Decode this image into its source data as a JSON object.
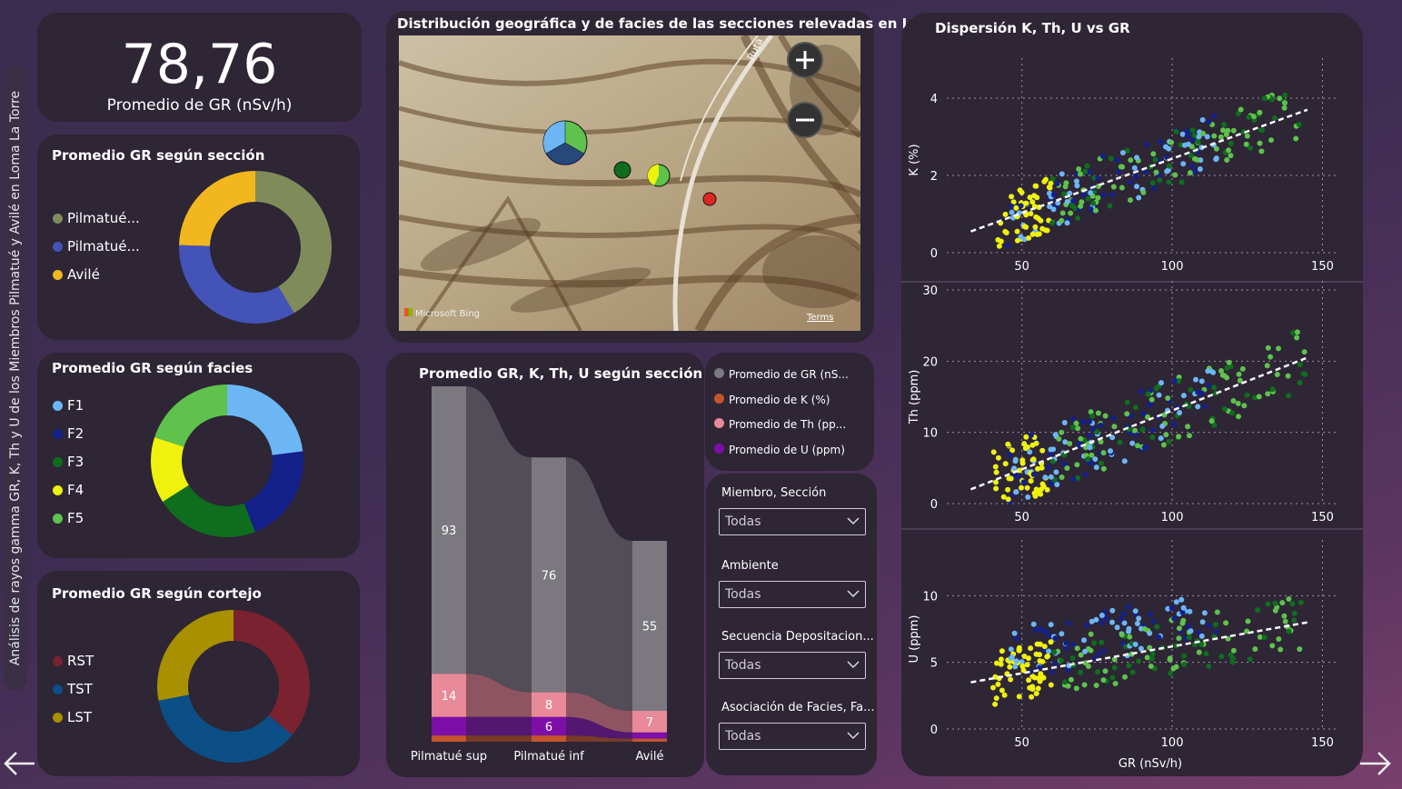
{
  "side_title": "Análisis de rayos gamma GR, K, Th y U de los Miembros Pilmatué y Avilé en Loma La Torre",
  "kpi": {
    "value": "78,76",
    "label": "Promedio de GR (nSv/h)"
  },
  "donut_seccion": {
    "title": "Promedio GR según sección",
    "legend": [
      "Pilmatué...",
      "Pilmatué...",
      "Avilé"
    ],
    "colors": [
      "#7f8c5a",
      "#4453b8",
      "#f2b71e"
    ],
    "values": [
      93,
      76,
      55
    ]
  },
  "donut_facies": {
    "title": "Promedio GR según facies",
    "legend": [
      "F1",
      "F2",
      "F3",
      "F4",
      "F5"
    ],
    "colors": [
      "#6cb6f5",
      "#14208a",
      "#0f6d1e",
      "#eef20d",
      "#5ec24c"
    ],
    "values": [
      0.23,
      0.21,
      0.22,
      0.14,
      0.2
    ]
  },
  "donut_cortejo": {
    "title": "Promedio GR según cortejo",
    "legend": [
      "RST",
      "TST",
      "LST"
    ],
    "colors": [
      "#7a2230",
      "#0b4f86",
      "#a89000"
    ],
    "values": [
      0.36,
      0.36,
      0.28
    ]
  },
  "map": {
    "title": "Distribución geográfica y de facies de las secciones relevadas en LLT",
    "attribution": "Microsoft Bing",
    "terms": "Terms",
    "road_label": "Ruta"
  },
  "ribbon": {
    "title": "Promedio GR, K, Th, U según sección",
    "categories": [
      "Pilmatué sup",
      "Pilmatué inf",
      "Avilé"
    ],
    "gr": [
      93,
      76,
      55
    ],
    "th": [
      14,
      8,
      7
    ],
    "u": [
      6,
      6,
      2
    ],
    "k": [
      2,
      2,
      1
    ],
    "gr_labels": [
      "93",
      "76",
      "55"
    ],
    "th_labels": [
      "14",
      "8",
      "7"
    ],
    "u_label_mid": "6"
  },
  "ribbon_legend": {
    "items": [
      {
        "label": "Promedio de GR (nS...",
        "color": "#7b7880"
      },
      {
        "label": "Promedio de K (%)",
        "color": "#c4552c"
      },
      {
        "label": "Promedio de Th (pp...",
        "color": "#e98a99"
      },
      {
        "label": "Promedio de U (ppm)",
        "color": "#7d0fa8"
      }
    ]
  },
  "slicers": [
    {
      "label": "Miembro, Sección",
      "value": "Todas"
    },
    {
      "label": "Ambiente",
      "value": "Todas"
    },
    {
      "label": "Secuencia Depositacion...",
      "value": "Todas"
    },
    {
      "label": "Asociación de Facies, Fa...",
      "value": "Todas"
    }
  ],
  "chart_data": {
    "type": "scatter",
    "title": "Dispersión K, Th, U vs GR",
    "xlabel": "GR (nSv/h)",
    "xlim": [
      25,
      155
    ],
    "x_ticks": [
      "50",
      "100",
      "150"
    ],
    "legend_colors": {
      "F1": "#6cb6f5",
      "F2": "#14208a",
      "F3": "#0f6d1e",
      "F4": "#eef20d",
      "F5": "#5ec24c"
    },
    "panels": [
      {
        "ylabel": "K (%)",
        "ylim": [
          0,
          4.8
        ],
        "y_ticks": [
          "0",
          "2",
          "4"
        ],
        "y_tick_values": [
          0,
          2,
          4
        ],
        "trend": [
          [
            33,
            0.55
          ],
          [
            145,
            3.7
          ]
        ]
      },
      {
        "ylabel": "Th (ppm)",
        "ylim": [
          0,
          30
        ],
        "y_ticks": [
          "0",
          "10",
          "20",
          "30"
        ],
        "y_tick_values": [
          0,
          10,
          20,
          30
        ],
        "trend": [
          [
            33,
            2
          ],
          [
            145,
            20.5
          ]
        ]
      },
      {
        "ylabel": "U (ppm)",
        "ylim": [
          0,
          13.5
        ],
        "y_ticks": [
          "0",
          "5",
          "10"
        ],
        "y_tick_values": [
          0,
          5,
          10
        ],
        "trend": [
          [
            33,
            3.5
          ],
          [
            145,
            8
          ]
        ]
      }
    ]
  }
}
